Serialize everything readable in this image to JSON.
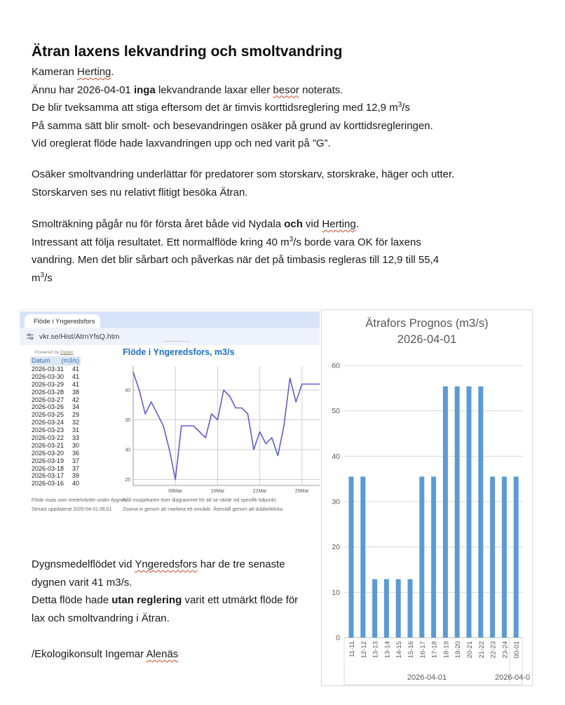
{
  "doc": {
    "title": "Ätran laxens lekvandring och smoltvandring",
    "para1": [
      [
        {
          "t": "Kameran "
        },
        {
          "t": "Herting",
          "w": 1
        },
        {
          "t": "."
        }
      ],
      [
        {
          "t": "Ännu har 2026-04-01 "
        },
        {
          "t": "inga",
          "b": 1
        },
        {
          "t": " lekvandrande laxar eller "
        },
        {
          "t": "besor",
          "w": 1
        },
        {
          "t": " noterats."
        }
      ],
      [
        {
          "t": "De blir tveksamma att stiga eftersom det är timvis korttidsreglering med 12,9 m"
        },
        {
          "t": "3",
          "s": 1
        },
        {
          "t": "/s"
        }
      ],
      [
        {
          "t": "På samma sätt blir smolt- och besevandringen osäker på grund av korttidsregleringen."
        }
      ],
      [
        {
          "t": "Vid oreglerat flöde hade laxvandringen upp och ned varit på ”G”."
        }
      ]
    ],
    "para2": [
      [
        {
          "t": "Osäker smoltvandring underlättar för predatorer som storskarv, storskrake, häger och utter."
        }
      ],
      [
        {
          "t": "Storskarven ses nu relativt flitigt besöka Ätran."
        }
      ]
    ],
    "para3": [
      [
        {
          "t": "Smolträkning pågår nu för första året både vid Nydala "
        },
        {
          "t": "och",
          "b": 1
        },
        {
          "t": " vid "
        },
        {
          "t": "Herting",
          "w": 1
        },
        {
          "t": "."
        }
      ],
      [
        {
          "t": "Intressant att följa resultatet. Ett normalflöde kring 40 m"
        },
        {
          "t": "3",
          "s": 1
        },
        {
          "t": "/s borde vara OK för laxens"
        }
      ],
      [
        {
          "t": "vandring. Men det blir sårbart och påverkas när det på timbasis regleras till 12,9 till 55,4"
        }
      ],
      [
        {
          "t": "m"
        },
        {
          "t": "3",
          "s": 1
        },
        {
          "t": "/s"
        }
      ]
    ],
    "bottom": [
      [
        {
          "t": "Dygnsmedelflödet vid "
        },
        {
          "t": "Yngeredsfors",
          "w": 1
        },
        {
          "t": " har de tre senaste"
        }
      ],
      [
        {
          "t": "dygnen varit 41 m3/s."
        }
      ],
      [
        {
          "t": "Detta flöde hade "
        },
        {
          "t": "utan reglering",
          "b": 1
        },
        {
          "t": " varit ett utmärkt flöde för"
        }
      ],
      [
        {
          "t": "lax och smoltvandring i Ätran."
        }
      ]
    ],
    "signature": [
      [
        {
          "t": "/Ekologikonsult Ingemar "
        },
        {
          "t": "Alenäs",
          "w": 1
        }
      ]
    ]
  },
  "browser": {
    "tab_title": "Flöde i Yngeredsfors",
    "url": "vkr.se/Hist/AtrnYfsQ.htm",
    "powered_by_prefix": "Powered by ",
    "powered_by_link": "Dygsn",
    "table": {
      "headers": [
        "Datum",
        "(m3/s)"
      ],
      "rows": [
        [
          "2026-03-31",
          "41"
        ],
        [
          "2026-03-30",
          "41"
        ],
        [
          "2026-03-29",
          "41"
        ],
        [
          "2026-03-28",
          "38"
        ],
        [
          "2026-03-27",
          "42"
        ],
        [
          "2026-03-26",
          "34"
        ],
        [
          "2026-03-25",
          "29"
        ],
        [
          "2026-03-24",
          "32"
        ],
        [
          "2026-03-23",
          "31"
        ],
        [
          "2026-03-22",
          "33"
        ],
        [
          "2026-03-21",
          "30"
        ],
        [
          "2026-03-20",
          "36"
        ],
        [
          "2026-03-19",
          "37"
        ],
        [
          "2026-03-18",
          "37"
        ],
        [
          "2026-03-17",
          "39"
        ],
        [
          "2026-03-16",
          "40"
        ]
      ]
    },
    "footnotes_left": [
      "Flöde visas som medelvärdet under dygnet.",
      "Senast uppdaterat 2026-04-01 06:01"
    ],
    "footnotes_right": [
      "Håll muspekaren över diagrammet för att se värde vid specifik tidpunkt.",
      "Zooma in genom att markera ett område. Återställ genom att dubbelklicka."
    ]
  },
  "chart_data": [
    {
      "type": "line",
      "title": "Flöde i Yngeredsfors, m3/s",
      "start_date": "2026-03-01",
      "x_days": [
        1,
        2,
        3,
        4,
        5,
        6,
        7,
        8,
        9,
        10,
        11,
        12,
        13,
        14,
        15,
        16,
        17,
        18,
        19,
        20,
        21,
        22,
        23,
        24,
        25,
        26,
        27,
        28,
        29,
        30,
        31
      ],
      "values": [
        43,
        40,
        36,
        38,
        36,
        34,
        30,
        25,
        34,
        34,
        34,
        33,
        32,
        36,
        35,
        40,
        39,
        37,
        37,
        36,
        30,
        33,
        31,
        32,
        29,
        34,
        42,
        38,
        41,
        41,
        41
      ],
      "xticks": [
        "08Mar",
        "15Mar",
        "22Mar",
        "29Mar"
      ],
      "xtick_days": [
        8,
        15,
        22,
        29
      ],
      "yticks": [
        25,
        30,
        35,
        40
      ],
      "ylim": [
        24,
        44
      ],
      "grid": true,
      "legend": "none"
    },
    {
      "type": "bar",
      "title_lines": [
        "Ätrafors Prognos (m3/s)",
        "2026-04-01"
      ],
      "categories": [
        "11-11",
        "12-12",
        "13-13",
        "13-14",
        "14-15",
        "15-16",
        "16-17",
        "17-18",
        "18-19",
        "19-20",
        "20-21",
        "21-22",
        "22-23",
        "23-24",
        "00-01"
      ],
      "values": [
        35.5,
        35.5,
        12.9,
        12.9,
        12.9,
        12.9,
        35.5,
        35.5,
        55.4,
        55.4,
        55.4,
        55.4,
        35.5,
        35.5,
        35.5
      ],
      "yticks": [
        0,
        10,
        20,
        30,
        40,
        50,
        60
      ],
      "ylim": [
        0,
        62
      ],
      "group_labels": [
        "2026-04-01",
        "2026-04-0"
      ],
      "grid": true,
      "legend": "none"
    }
  ],
  "colors": {
    "line_purple": "#5e5ed0",
    "bar_blue": "#5b9bd5",
    "chart_title_blue": "#1b6fd3",
    "excel_gray": "#595959",
    "gridline_light": "#d9d9d9",
    "gridline_mid": "#cdcdcd",
    "axis_gray": "#9a9a9a",
    "wavy_red": "#d24726",
    "tab_strip": "#d7e3f8",
    "urlbar_bg": "#eef3fb",
    "table_header_bg": "#dce6f1",
    "table_header_text": "#2f6fb8"
  }
}
